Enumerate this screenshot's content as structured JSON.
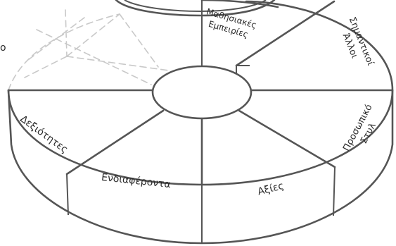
{
  "colors": {
    "outline": "#555555",
    "ghost": "#c9c9c9",
    "text": "#2b2b2b",
    "background": "#ffffff"
  },
  "cropped_text": {
    "left_edge": "o"
  },
  "segments": [
    {
      "id": "learning-experiences",
      "lines": [
        "Μαθησιακές",
        "Εμπειρίες"
      ]
    },
    {
      "id": "significant-others",
      "lines": [
        "Σημαντικοί",
        "Άλλοι"
      ]
    },
    {
      "id": "personal-style",
      "lines": [
        "Προσωπικό",
        "Στυλ"
      ]
    },
    {
      "id": "values",
      "lines": [
        "Αξίες"
      ]
    },
    {
      "id": "interests",
      "lines": [
        "Ενδιαφέροντα"
      ]
    },
    {
      "id": "skills",
      "lines": [
        "Δεξιότητες"
      ]
    }
  ]
}
